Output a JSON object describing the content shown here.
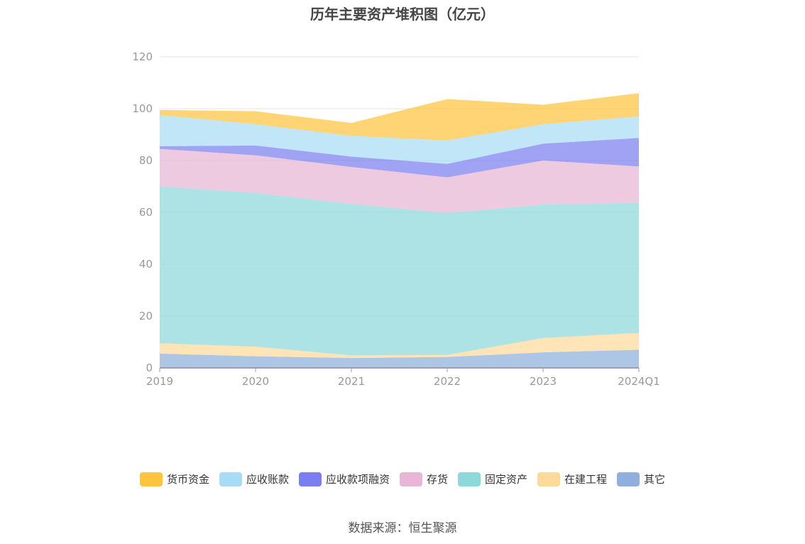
{
  "title": "历年主要资产堆积图（亿元）",
  "source": "数据来源：恒生聚源",
  "chart_data": {
    "type": "area",
    "stacked": true,
    "x": [
      "2019",
      "2020",
      "2021",
      "2022",
      "2023",
      "2024Q1"
    ],
    "ylim": [
      0,
      120
    ],
    "yticks": [
      0,
      20,
      40,
      60,
      80,
      100,
      120
    ],
    "grid": true,
    "legend": "bottom",
    "series": [
      {
        "name": "其它",
        "color": "#8fb0dd",
        "values": [
          5.5,
          4.5,
          3.8,
          4.2,
          6.0,
          7.0
        ]
      },
      {
        "name": "在建工程",
        "color": "#fdd99b",
        "values": [
          4.0,
          3.7,
          1.0,
          0.8,
          5.5,
          6.5
        ]
      },
      {
        "name": "固定资产",
        "color": "#8dd8da",
        "values": [
          60.5,
          59.3,
          58.5,
          54.7,
          51.5,
          50.2
        ]
      },
      {
        "name": "存货",
        "color": "#e8b6d6",
        "values": [
          14.5,
          14.5,
          14.2,
          13.8,
          17.0,
          14.0
        ]
      },
      {
        "name": "应收款项融资",
        "color": "#7b7ef0",
        "values": [
          1.0,
          3.8,
          4.0,
          5.2,
          6.5,
          11.0
        ]
      },
      {
        "name": "应收账款",
        "color": "#a8dcf5",
        "values": [
          12.0,
          8.2,
          8.0,
          9.0,
          7.5,
          8.3
        ]
      },
      {
        "name": "货币资金",
        "color": "#fdc43e",
        "values": [
          2.0,
          5.0,
          5.0,
          16.0,
          7.5,
          9.0
        ]
      }
    ]
  }
}
